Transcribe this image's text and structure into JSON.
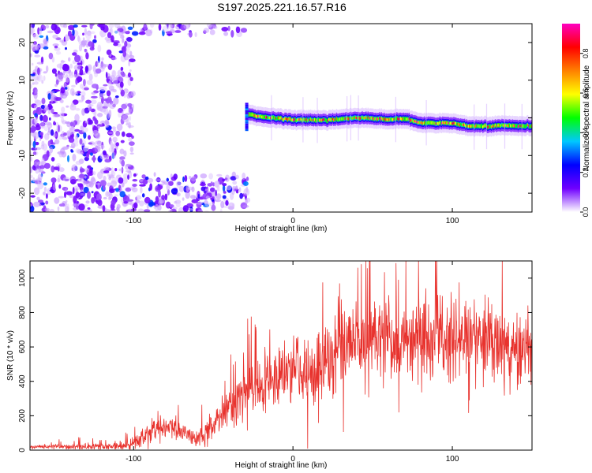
{
  "title": "S197.2025.221.16.57.R16",
  "chart_data": [
    {
      "type": "heatmap",
      "name": "spectrogram",
      "xlabel": "Height of straight line (km)",
      "ylabel": "Frequency (Hz)",
      "xlim": [
        -165,
        150
      ],
      "ylim": [
        -25,
        25
      ],
      "x_ticks": [
        {
          "value": -100,
          "label": "-100"
        },
        {
          "value": 0,
          "label": "0"
        },
        {
          "value": 100,
          "label": "100"
        }
      ],
      "y_ticks": [
        {
          "value": 20,
          "label": "20"
        },
        {
          "value": 10,
          "label": "10"
        },
        {
          "value": 0,
          "label": "0"
        },
        {
          "value": -10,
          "label": "-10"
        },
        {
          "value": -20,
          "label": "-20"
        }
      ],
      "noise_regions": [
        {
          "x": [
            -165,
            -100
          ],
          "y": [
            -25,
            25
          ],
          "density": 0.55
        },
        {
          "x": [
            -100,
            -28
          ],
          "y": [
            -25,
            -15
          ],
          "density": 0.6
        },
        {
          "x": [
            -100,
            -30
          ],
          "y": [
            22,
            25
          ],
          "density": 0.5
        }
      ],
      "ridge": {
        "x_start": -30,
        "x_end": 150,
        "center_freq": [
          [
            -30,
            1.0
          ],
          [
            -20,
            0.3
          ],
          [
            0,
            -0.5
          ],
          [
            20,
            -0.6
          ],
          [
            40,
            0.0
          ],
          [
            60,
            -0.4
          ],
          [
            70,
            -0.2
          ],
          [
            80,
            -1.3
          ],
          [
            100,
            -1.5
          ],
          [
            110,
            -2.2
          ],
          [
            120,
            -2.3
          ],
          [
            130,
            -2.0
          ],
          [
            150,
            -2.2
          ]
        ],
        "amplitude": 0.9
      },
      "colorbar": {
        "label": "Normalized spectral amplitude",
        "range": [
          0.0,
          0.95
        ],
        "ticks": [
          {
            "value": 0.0,
            "label": "0.0"
          },
          {
            "value": 0.2,
            "label": "0.2"
          },
          {
            "value": 0.4,
            "label": "0.4"
          },
          {
            "value": 0.6,
            "label": "0.6"
          },
          {
            "value": 0.8,
            "label": "0.8"
          }
        ],
        "colors": [
          "#ffffff",
          "#7000ff",
          "#0000ff",
          "#00c8ff",
          "#00ff00",
          "#ffff00",
          "#ff8000",
          "#ff0000",
          "#ff00c0"
        ]
      }
    },
    {
      "type": "line",
      "name": "snr",
      "xlabel": "Height of straight line (km)",
      "ylabel": "SNR (10 * v/v)",
      "xlim": [
        -165,
        150
      ],
      "ylim": [
        0,
        1100
      ],
      "color": "#e8332e",
      "x_ticks": [
        {
          "value": -100,
          "label": "-100"
        },
        {
          "value": 0,
          "label": "0"
        },
        {
          "value": 100,
          "label": "100"
        }
      ],
      "y_ticks": [
        {
          "value": 0,
          "label": "0"
        },
        {
          "value": 200,
          "label": "200"
        },
        {
          "value": 400,
          "label": "400"
        },
        {
          "value": 600,
          "label": "600"
        },
        {
          "value": 800,
          "label": "800"
        },
        {
          "value": 1000,
          "label": "1000"
        }
      ],
      "envelope": [
        [
          -165,
          20
        ],
        [
          -110,
          20
        ],
        [
          -100,
          40
        ],
        [
          -90,
          110
        ],
        [
          -80,
          140
        ],
        [
          -70,
          120
        ],
        [
          -60,
          60
        ],
        [
          -50,
          150
        ],
        [
          -40,
          260
        ],
        [
          -30,
          330
        ],
        [
          -20,
          380
        ],
        [
          -10,
          420
        ],
        [
          0,
          470
        ],
        [
          10,
          420
        ],
        [
          20,
          500
        ],
        [
          30,
          600
        ],
        [
          50,
          650
        ],
        [
          70,
          650
        ],
        [
          90,
          660
        ],
        [
          110,
          670
        ],
        [
          130,
          630
        ],
        [
          150,
          590
        ]
      ],
      "spread": [
        [
          -165,
          8
        ],
        [
          -100,
          30
        ],
        [
          -90,
          70
        ],
        [
          -60,
          60
        ],
        [
          -40,
          130
        ],
        [
          0,
          190
        ],
        [
          20,
          220
        ],
        [
          60,
          260
        ],
        [
          100,
          250
        ],
        [
          150,
          200
        ]
      ]
    }
  ]
}
